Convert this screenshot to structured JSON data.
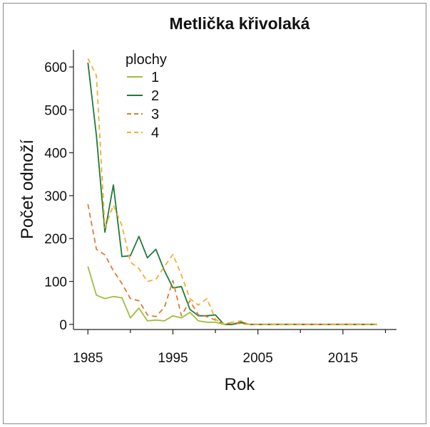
{
  "chart_data": {
    "type": "line",
    "title": "Metlička křivolaká",
    "xlabel": "Rok",
    "ylabel": "Počet odnoží",
    "xlim": [
      1983.3,
      2021.3
    ],
    "ylim": [
      -12,
      640
    ],
    "xticks": [
      1985,
      1995,
      2005,
      2015
    ],
    "yticks": [
      0,
      100,
      200,
      300,
      400,
      500,
      600
    ],
    "legend_title": "plochy",
    "legend_position": "top-left",
    "grid": false,
    "x": [
      1985,
      1986,
      1987,
      1988,
      1989,
      1990,
      1991,
      1992,
      1993,
      1994,
      1995,
      1996,
      1997,
      1998,
      1999,
      2000,
      2001,
      2002,
      2003,
      2004,
      2005,
      2006,
      2007,
      2008,
      2009,
      2010,
      2011,
      2012,
      2013,
      2014,
      2015,
      2016,
      2017,
      2018,
      2019
    ],
    "series": [
      {
        "name": "1",
        "color": "#9ebe3c",
        "dash": "solid",
        "values": [
          135,
          68,
          60,
          65,
          62,
          15,
          38,
          8,
          10,
          8,
          20,
          15,
          28,
          8,
          5,
          5,
          0,
          0,
          3,
          0,
          0,
          0,
          0,
          0,
          0,
          0,
          0,
          0,
          0,
          0,
          0,
          0,
          0,
          0,
          0
        ]
      },
      {
        "name": "2",
        "color": "#1f7a3a",
        "dash": "solid",
        "values": [
          610,
          440,
          215,
          325,
          158,
          160,
          205,
          155,
          175,
          125,
          85,
          88,
          35,
          20,
          20,
          22,
          0,
          0,
          5,
          0,
          0,
          0,
          0,
          0,
          0,
          0,
          0,
          0,
          0,
          0,
          0,
          0,
          0,
          0,
          0
        ]
      },
      {
        "name": "3",
        "color": "#e07a33",
        "dash": "dashed",
        "values": [
          280,
          175,
          162,
          125,
          95,
          60,
          55,
          22,
          18,
          40,
          102,
          20,
          55,
          22,
          18,
          10,
          0,
          5,
          2,
          0,
          0,
          0,
          0,
          0,
          0,
          0,
          0,
          0,
          0,
          0,
          0,
          0,
          0,
          0,
          0
        ]
      },
      {
        "name": "4",
        "color": "#f0b030",
        "dash": "dashed",
        "values": [
          620,
          580,
          225,
          278,
          230,
          145,
          130,
          100,
          105,
          135,
          163,
          115,
          60,
          45,
          60,
          12,
          0,
          5,
          8,
          0,
          0,
          0,
          0,
          0,
          0,
          0,
          0,
          0,
          0,
          0,
          0,
          0,
          0,
          0,
          0
        ]
      }
    ]
  }
}
